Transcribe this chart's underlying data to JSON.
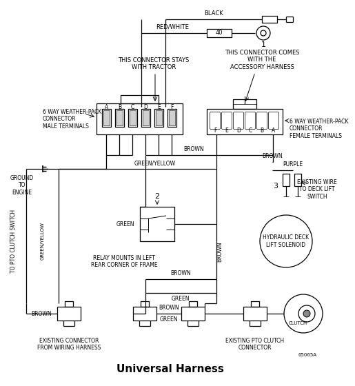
{
  "title": "Universal Harness",
  "bg_color": "#ffffff",
  "line_color": "#000000",
  "wire_labels": {
    "black": "BLACK",
    "red_white": "RED/WHITE",
    "brown": "BROWN",
    "green_yellow": "GREEN/YELLOW",
    "brown2": "BROWN",
    "purple": "PURPLE",
    "green": "GREEN",
    "brown3": "BROWN"
  },
  "annotations": {
    "connector_stays": "THIS CONNECTOR STAYS\nWITH TRACTOR",
    "connector_comes": "THIS CONNECTOR COMES\nWITH THE\nACCESSORY HARNESS",
    "left_connector": "6 WAY WEATHER-PACK\nCONNECTOR\nMALE TERMINALS",
    "right_connector": "6 WAY WEATHER-PACK\nCONNECTOR\nFEMALE TERMINALS",
    "ground": "GROUND\nTO\nENGINE",
    "pto_switch": "TO PTO CLUTCH SWITCH",
    "relay": "RELAY MOUNTS IN LEFT\nREAR CORNER OF FRAME",
    "relay_num": "2",
    "existing_conn": "EXISTING CONNECTOR\nFROM WIRING HARNESS",
    "existing_pto": "EXISTING PTO CLUTCH\nCONNECTOR",
    "hydraulic": "HYDRAULIC DECK\nLIFT SOLENOID",
    "existing_wire": "EXISTING WIRE\nTO DECK LIFT\nSWITCH",
    "purple_label": "PURPLE",
    "conn3_num": "3",
    "fuse_label": "40",
    "conn1_num": "1",
    "clutch_label": "CLUTCH",
    "part_num": "05065A",
    "green_label": "GREEN",
    "brown_label": "BROWN"
  },
  "male_terminals": [
    "A",
    "B",
    "C",
    "D",
    "E",
    "F"
  ],
  "female_terminals": [
    "F",
    "E",
    "D",
    "C",
    "B",
    "A"
  ]
}
